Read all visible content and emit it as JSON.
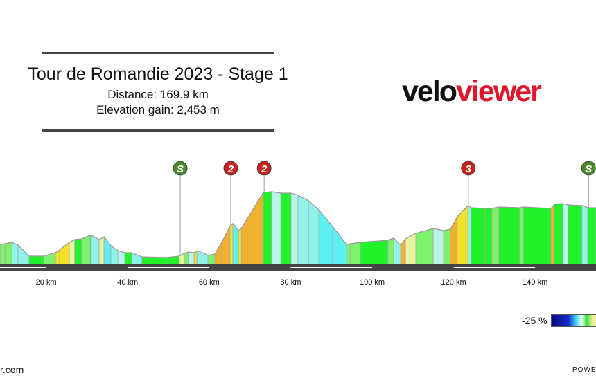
{
  "header": {
    "title": "Tour de Romandie 2023 - Stage 1",
    "distance": "Distance: 169.9 km",
    "elevation_gain": "Elevation gain: 2,453 m"
  },
  "logo": {
    "part1": "velo",
    "part2": "viewer"
  },
  "legend": {
    "label": "-25 %"
  },
  "footer": {
    "left": "r.com",
    "right": "POWER"
  },
  "colors": {
    "sprint": "#4a8a2a",
    "kom": "#c8241e",
    "road": "#444444"
  },
  "chart_data": {
    "type": "area",
    "xlabel": "",
    "ylabel": "",
    "x_ticks": [
      20,
      40,
      60,
      80,
      100,
      120,
      140
    ],
    "x_tick_labels": [
      "20 km",
      "40 km",
      "60 km",
      "80 km",
      "100 km",
      "120 km",
      "140 km"
    ],
    "markers": [
      {
        "km": 52.9,
        "label": "S",
        "type": "sprint"
      },
      {
        "km": 65.3,
        "label": "2",
        "type": "kom"
      },
      {
        "km": 73.5,
        "label": "2",
        "type": "kom"
      },
      {
        "km": 123.6,
        "label": "3",
        "type": "kom"
      },
      {
        "km": 153.1,
        "label": "S",
        "type": "sprint"
      }
    ],
    "profile": [
      [
        8.7,
        670
      ],
      [
        9.9,
        680
      ],
      [
        11.6,
        700
      ],
      [
        13.1,
        660
      ],
      [
        15.8,
        500
      ],
      [
        19.4,
        500
      ],
      [
        22.3,
        550
      ],
      [
        23.3,
        590
      ],
      [
        25.7,
        700
      ],
      [
        27.0,
        740
      ],
      [
        28.7,
        750
      ],
      [
        30.8,
        800
      ],
      [
        31.1,
        800
      ],
      [
        33.0,
        740
      ],
      [
        34.2,
        780
      ],
      [
        35.9,
        650
      ],
      [
        37.6,
        580
      ],
      [
        39.3,
        550
      ],
      [
        41.0,
        550
      ],
      [
        43.5,
        490
      ],
      [
        49.5,
        480
      ],
      [
        52.6,
        500
      ],
      [
        53.9,
        540
      ],
      [
        54.9,
        560
      ],
      [
        56.3,
        550
      ],
      [
        57.0,
        580
      ],
      [
        58.8,
        540
      ],
      [
        59.7,
        510
      ],
      [
        61.4,
        530
      ],
      [
        63.1,
        700
      ],
      [
        65.1,
        930
      ],
      [
        65.8,
        970
      ],
      [
        67.2,
        870
      ],
      [
        67.9,
        900
      ],
      [
        73.3,
        1420
      ],
      [
        75.3,
        1430
      ],
      [
        77.6,
        1410
      ],
      [
        80.1,
        1410
      ],
      [
        81.8,
        1380
      ],
      [
        84.4,
        1300
      ],
      [
        86.9,
        1170
      ],
      [
        90.3,
        930
      ],
      [
        93.7,
        670
      ],
      [
        94.6,
        680
      ],
      [
        97.1,
        700
      ],
      [
        103.9,
        730
      ],
      [
        105.3,
        760
      ],
      [
        107.0,
        660
      ],
      [
        108.2,
        750
      ],
      [
        110.7,
        830
      ],
      [
        115.0,
        900
      ],
      [
        117.5,
        870
      ],
      [
        119.2,
        890
      ],
      [
        120.9,
        1070
      ],
      [
        123.0,
        1200
      ],
      [
        123.5,
        1230
      ],
      [
        124.3,
        1200
      ],
      [
        127.7,
        1190
      ],
      [
        129.4,
        1190
      ],
      [
        131.1,
        1210
      ],
      [
        136.2,
        1200
      ],
      [
        137.1,
        1210
      ],
      [
        143.9,
        1190
      ],
      [
        144.7,
        1250
      ],
      [
        146.8,
        1260
      ],
      [
        148.1,
        1240
      ],
      [
        151.5,
        1230
      ],
      [
        152.9,
        1200
      ],
      [
        154.9,
        1200
      ]
    ]
  }
}
